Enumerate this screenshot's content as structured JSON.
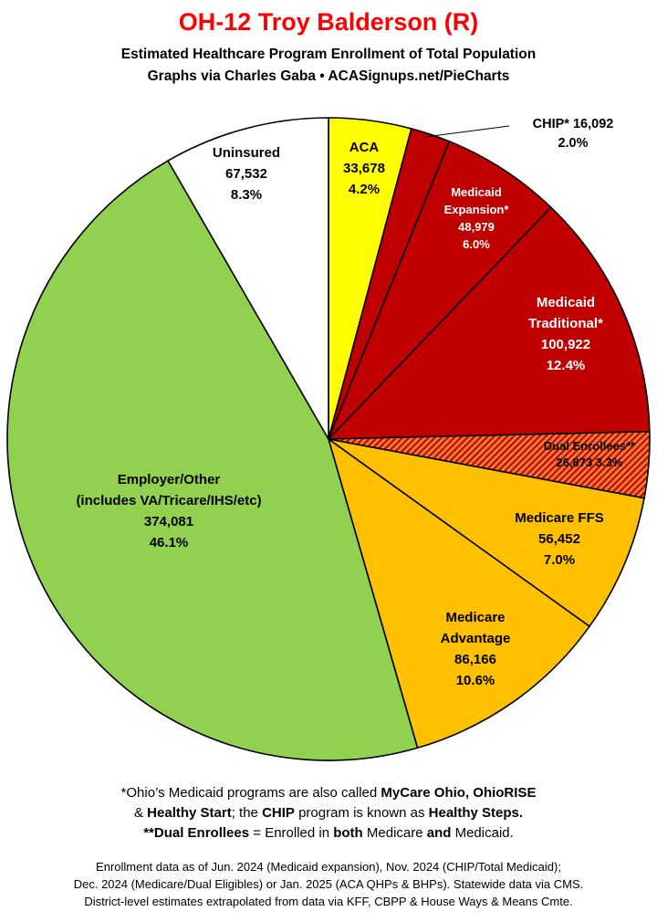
{
  "title": "OH-12 Troy Balderson (R)",
  "subtitle_1": "Estimated Healthcare Program Enrollment of Total Population",
  "subtitle_2": "Graphs via Charles Gaba  •  ACASignups.net/PieCharts",
  "colors": {
    "title": "#ff0000",
    "aca": "#ffff00",
    "medicaid": "#c00000",
    "dual_base": "#ed7d31",
    "dual_stripe": "#c00000",
    "medicare": "#ffc000",
    "employer": "#92d050",
    "uninsured": "#ffffff"
  },
  "chart_data": {
    "type": "pie",
    "title": "",
    "start_angle_deg": 0,
    "direction": "clockwise",
    "slices": [
      {
        "key": "aca",
        "lines": [
          "ACA",
          "33,678",
          "4.2%"
        ],
        "value": 33678,
        "percent": 4.2,
        "color": "#ffff00",
        "label_color": "#000000"
      },
      {
        "key": "chip",
        "lines": [
          "CHIP* 16,092",
          "2.0%"
        ],
        "value": 16092,
        "percent": 2.0,
        "color": "#c00000",
        "label_color": "#000000",
        "label_outside": true
      },
      {
        "key": "medicaid_expansion",
        "lines": [
          "Medicaid",
          "Expansion*",
          "48,979",
          "6.0%"
        ],
        "value": 48979,
        "percent": 6.0,
        "color": "#c00000",
        "label_color": "#ffffff"
      },
      {
        "key": "medicaid_traditional",
        "lines": [
          "Medicaid",
          "Traditional*",
          "100,922",
          "12.4%"
        ],
        "value": 100922,
        "percent": 12.4,
        "color": "#c00000",
        "label_color": "#ffffff"
      },
      {
        "key": "dual_enrollees",
        "lines": [
          "Dual Enrollees**",
          "26,873 3.3%"
        ],
        "value": 26873,
        "percent": 3.3,
        "color": "#ed7d31",
        "pattern": "stripes",
        "label_color": "#000000"
      },
      {
        "key": "medicare_ffs",
        "lines": [
          "Medicare FFS",
          "56,452",
          "7.0%"
        ],
        "value": 56452,
        "percent": 7.0,
        "color": "#ffc000",
        "label_color": "#000000"
      },
      {
        "key": "medicare_advantage",
        "lines": [
          "Medicare",
          "Advantage",
          "86,166",
          "10.6%"
        ],
        "value": 86166,
        "percent": 10.6,
        "color": "#ffc000",
        "label_color": "#000000"
      },
      {
        "key": "employer_other",
        "lines": [
          "Employer/Other",
          "(includes VA/Tricare/IHS/etc)",
          "374,081",
          "46.1%"
        ],
        "value": 374081,
        "percent": 46.1,
        "color": "#92d050",
        "label_color": "#000000"
      },
      {
        "key": "uninsured",
        "lines": [
          "Uninsured",
          "67,532",
          "8.3%"
        ],
        "value": 67532,
        "percent": 8.3,
        "color": "#ffffff",
        "label_color": "#000000"
      }
    ]
  },
  "footnotes": {
    "line1_a": "*Ohio’s Medicaid programs are also called ",
    "line1_b": "MyCare Ohio, OhioRISE",
    "line2_a": "& ",
    "line2_b": "Healthy Start",
    "line2_c": "; the ",
    "line2_d": "CHIP",
    "line2_e": " program is known as ",
    "line2_f": "Healthy Steps.",
    "line3_a": "**Dual Enrollees",
    "line3_b": " = Enrolled in ",
    "line3_c": "both",
    "line3_d": " Medicare ",
    "line3_e": "and",
    "line3_f": " Medicaid."
  },
  "source": {
    "line1": "Enrollment data as of Jun. 2024 (Medicaid expansion), Nov. 2024 (CHIP/Total Medicaid);",
    "line2": "Dec. 2024 (Medicare/Dual Eligibles) or Jan. 2025 (ACA QHPs & BHPs). Statewide data via CMS.",
    "line3": "District-level estimates extrapolated from data via KFF, CBPP & House Ways & Means Cmte."
  }
}
